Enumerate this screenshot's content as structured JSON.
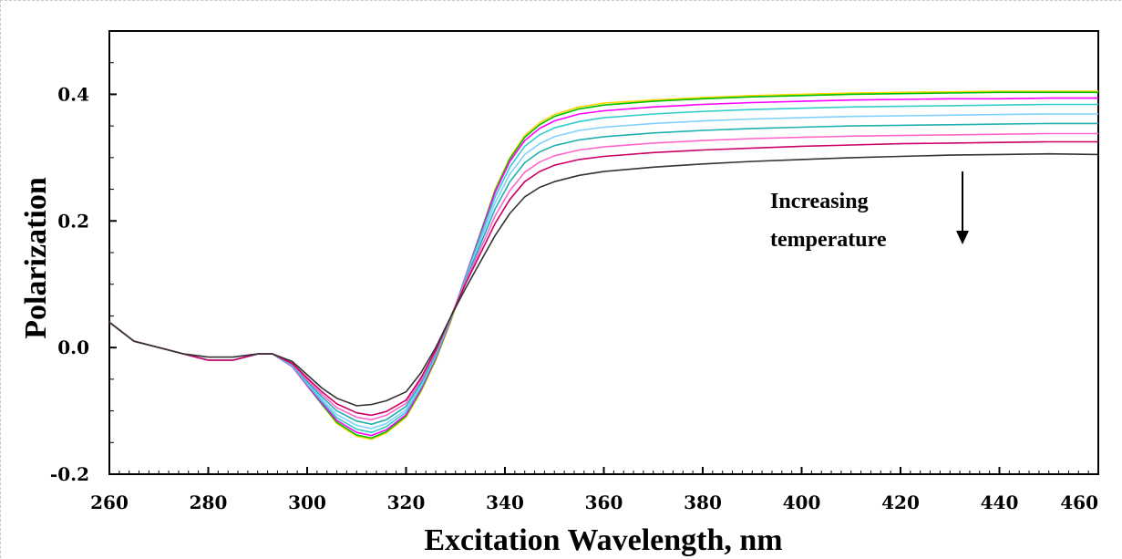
{
  "chart_data": {
    "type": "line",
    "title": "",
    "xlabel": "Excitation Wavelength, nm",
    "ylabel": "Polarization",
    "xlim": [
      260,
      460
    ],
    "ylim": [
      -0.2,
      0.5
    ],
    "x_ticks": [
      "260",
      "280",
      "300",
      "320",
      "340",
      "360",
      "380",
      "400",
      "420",
      "440",
      "460"
    ],
    "y_ticks": [
      "-0.2",
      "0.0",
      "0.2",
      "0.4"
    ],
    "grid": false,
    "annotation": {
      "lines": [
        "Increasing",
        "temperature"
      ],
      "arrow": "down"
    },
    "x": [
      260,
      265,
      270,
      275,
      280,
      285,
      290,
      293,
      297,
      300,
      303,
      306,
      310,
      313,
      316,
      320,
      323,
      326,
      329,
      332,
      335,
      338,
      341,
      344,
      347,
      350,
      355,
      360,
      370,
      380,
      390,
      400,
      410,
      420,
      430,
      440,
      450,
      460
    ],
    "series": [
      {
        "color": "#ffd500",
        "values": [
          0.04,
          0.01,
          0.0,
          -0.01,
          -0.02,
          -0.02,
          -0.01,
          -0.01,
          -0.03,
          -0.06,
          -0.09,
          -0.12,
          -0.14,
          -0.145,
          -0.135,
          -0.11,
          -0.07,
          -0.02,
          0.04,
          0.11,
          0.18,
          0.25,
          0.3,
          0.335,
          0.355,
          0.368,
          0.38,
          0.386,
          0.391,
          0.395,
          0.398,
          0.4,
          0.402,
          0.403,
          0.404,
          0.405,
          0.405,
          0.405
        ]
      },
      {
        "color": "#00c000",
        "values": [
          0.04,
          0.01,
          0.0,
          -0.01,
          -0.02,
          -0.02,
          -0.01,
          -0.01,
          -0.03,
          -0.06,
          -0.09,
          -0.118,
          -0.138,
          -0.143,
          -0.133,
          -0.108,
          -0.068,
          -0.018,
          0.042,
          0.112,
          0.18,
          0.248,
          0.298,
          0.332,
          0.352,
          0.365,
          0.377,
          0.383,
          0.389,
          0.393,
          0.396,
          0.398,
          0.4,
          0.401,
          0.402,
          0.403,
          0.403,
          0.403
        ]
      },
      {
        "color": "#ff00ff",
        "values": [
          0.04,
          0.01,
          0.0,
          -0.01,
          -0.02,
          -0.02,
          -0.01,
          -0.01,
          -0.03,
          -0.06,
          -0.088,
          -0.115,
          -0.134,
          -0.139,
          -0.13,
          -0.106,
          -0.066,
          -0.016,
          0.043,
          0.112,
          0.178,
          0.245,
          0.294,
          0.327,
          0.346,
          0.358,
          0.369,
          0.374,
          0.38,
          0.384,
          0.387,
          0.389,
          0.391,
          0.392,
          0.393,
          0.393,
          0.394,
          0.394
        ]
      },
      {
        "color": "#33cccc",
        "values": [
          0.04,
          0.01,
          0.0,
          -0.01,
          -0.02,
          -0.02,
          -0.01,
          -0.01,
          -0.029,
          -0.058,
          -0.085,
          -0.111,
          -0.129,
          -0.134,
          -0.125,
          -0.102,
          -0.063,
          -0.014,
          0.044,
          0.11,
          0.174,
          0.238,
          0.285,
          0.318,
          0.336,
          0.347,
          0.357,
          0.363,
          0.369,
          0.373,
          0.376,
          0.378,
          0.38,
          0.381,
          0.382,
          0.383,
          0.384,
          0.384
        ]
      },
      {
        "color": "#80d0ff",
        "values": [
          0.04,
          0.01,
          0.0,
          -0.01,
          -0.02,
          -0.02,
          -0.01,
          -0.01,
          -0.028,
          -0.056,
          -0.082,
          -0.106,
          -0.123,
          -0.128,
          -0.12,
          -0.098,
          -0.06,
          -0.012,
          0.045,
          0.108,
          0.168,
          0.229,
          0.274,
          0.305,
          0.322,
          0.333,
          0.343,
          0.348,
          0.354,
          0.358,
          0.361,
          0.363,
          0.365,
          0.366,
          0.367,
          0.368,
          0.369,
          0.369
        ]
      },
      {
        "color": "#20b0b0",
        "values": [
          0.04,
          0.01,
          0.0,
          -0.01,
          -0.02,
          -0.02,
          -0.01,
          -0.01,
          -0.027,
          -0.054,
          -0.078,
          -0.1,
          -0.116,
          -0.121,
          -0.114,
          -0.093,
          -0.056,
          -0.01,
          0.046,
          0.106,
          0.162,
          0.219,
          0.262,
          0.292,
          0.309,
          0.319,
          0.328,
          0.333,
          0.339,
          0.343,
          0.346,
          0.348,
          0.35,
          0.351,
          0.352,
          0.353,
          0.354,
          0.354
        ]
      },
      {
        "color": "#ff66cc",
        "values": [
          0.04,
          0.01,
          0.0,
          -0.01,
          -0.02,
          -0.02,
          -0.01,
          -0.01,
          -0.026,
          -0.051,
          -0.074,
          -0.095,
          -0.11,
          -0.114,
          -0.107,
          -0.088,
          -0.052,
          -0.007,
          0.047,
          0.103,
          0.155,
          0.208,
          0.248,
          0.277,
          0.293,
          0.303,
          0.312,
          0.317,
          0.323,
          0.327,
          0.33,
          0.332,
          0.334,
          0.335,
          0.336,
          0.337,
          0.338,
          0.338
        ]
      },
      {
        "color": "#cc0066",
        "values": [
          0.04,
          0.01,
          0.0,
          -0.01,
          -0.02,
          -0.02,
          -0.01,
          -0.01,
          -0.025,
          -0.048,
          -0.07,
          -0.089,
          -0.103,
          -0.107,
          -0.101,
          -0.083,
          -0.048,
          -0.004,
          0.048,
          0.1,
          0.148,
          0.196,
          0.234,
          0.262,
          0.278,
          0.288,
          0.297,
          0.302,
          0.308,
          0.312,
          0.315,
          0.318,
          0.32,
          0.322,
          0.323,
          0.324,
          0.325,
          0.325
        ]
      },
      {
        "color": "#333333",
        "values": [
          0.04,
          0.01,
          0.0,
          -0.01,
          -0.015,
          -0.015,
          -0.01,
          -0.01,
          -0.022,
          -0.043,
          -0.064,
          -0.08,
          -0.092,
          -0.09,
          -0.084,
          -0.07,
          -0.04,
          0.0,
          0.048,
          0.093,
          0.135,
          0.177,
          0.212,
          0.238,
          0.253,
          0.262,
          0.272,
          0.278,
          0.285,
          0.29,
          0.294,
          0.297,
          0.3,
          0.302,
          0.304,
          0.305,
          0.306,
          0.305
        ]
      }
    ]
  }
}
